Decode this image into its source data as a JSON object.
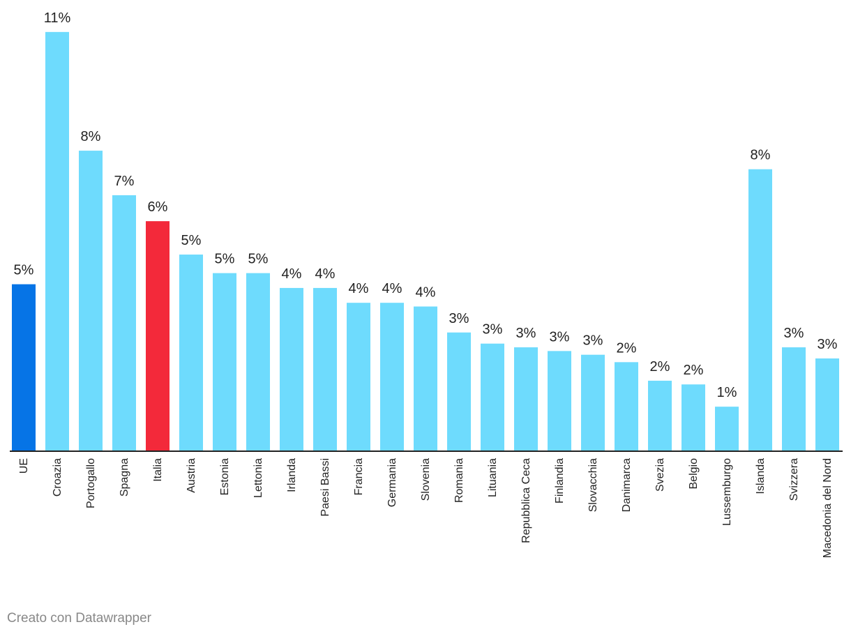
{
  "chart_data": {
    "type": "bar",
    "title": "",
    "xlabel": "",
    "ylabel": "",
    "ylim": [
      0,
      11
    ],
    "grid": false,
    "categories": [
      "UE",
      "Croazia",
      "Portogallo",
      "Spagna",
      "Italia",
      "Austria",
      "Estonia",
      "Lettonia",
      "Irlanda",
      "Paesi Bassi",
      "Francia",
      "Germania",
      "Slovenia",
      "Romania",
      "Lituania",
      "Repubblica Ceca",
      "Finlandia",
      "Slovacchia",
      "Danimarca",
      "Svezia",
      "Belgio",
      "Lussemburgo",
      "Islanda",
      "Svizzera",
      "Macedonia del Nord"
    ],
    "values": [
      4.5,
      11.3,
      8.1,
      6.9,
      6.2,
      5.3,
      4.8,
      4.8,
      4.4,
      4.4,
      4.0,
      4.0,
      3.9,
      3.2,
      2.9,
      2.8,
      2.7,
      2.6,
      2.4,
      1.9,
      1.8,
      1.2,
      7.6,
      2.8,
      2.5
    ],
    "labels": [
      "5%",
      "11%",
      "8%",
      "7%",
      "6%",
      "5%",
      "5%",
      "5%",
      "4%",
      "4%",
      "4%",
      "4%",
      "4%",
      "3%",
      "3%",
      "3%",
      "3%",
      "3%",
      "2%",
      "2%",
      "2%",
      "1%",
      "8%",
      "3%",
      "3%"
    ],
    "bar_colors": [
      "#0674e6",
      "#6edbfd",
      "#6edbfd",
      "#6edbfd",
      "#f3293a",
      "#6edbfd",
      "#6edbfd",
      "#6edbfd",
      "#6edbfd",
      "#6edbfd",
      "#6edbfd",
      "#6edbfd",
      "#6edbfd",
      "#6edbfd",
      "#6edbfd",
      "#6edbfd",
      "#6edbfd",
      "#6edbfd",
      "#6edbfd",
      "#6edbfd",
      "#6edbfd",
      "#6edbfd",
      "#6edbfd",
      "#6edbfd",
      "#6edbfd"
    ]
  },
  "colors": {
    "default": "#6edbfd",
    "eu": "#0674e6",
    "italy": "#f3293a",
    "axis": "#222222"
  },
  "footer": {
    "credit": "Creato con Datawrapper"
  }
}
